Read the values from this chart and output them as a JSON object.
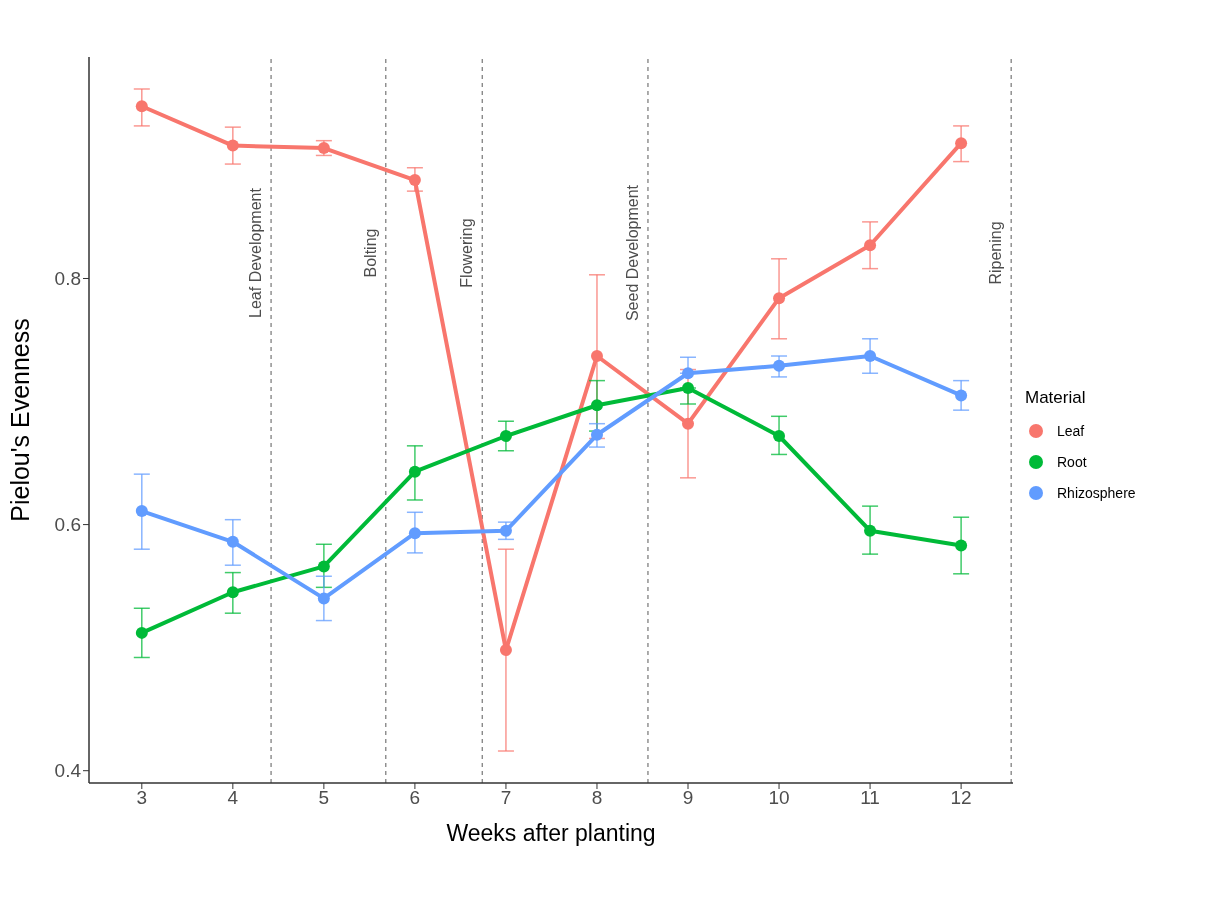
{
  "chart_data": {
    "type": "line",
    "xlabel": "Weeks after planting",
    "ylabel": "Pielou's Evenness",
    "legend_title": "Material",
    "x": [
      3,
      4,
      5,
      6,
      7,
      8,
      9,
      10,
      11,
      12
    ],
    "xlim": [
      2.42,
      12.57
    ],
    "xticks": [
      3,
      4,
      5,
      6,
      7,
      8,
      9,
      10,
      11,
      12
    ],
    "ylim": [
      0.39,
      0.98
    ],
    "yticks": [
      0.4,
      0.6,
      0.8
    ],
    "grid": false,
    "legend": "right",
    "marker": "circle",
    "line_style": "solid",
    "series": [
      {
        "name": "Leaf",
        "color": "#f8766d",
        "values": [
          0.94,
          0.908,
          0.906,
          0.88,
          0.498,
          0.737,
          0.682,
          0.784,
          0.827,
          0.91
        ],
        "errors": [
          [
            0.924,
            0.954
          ],
          [
            0.893,
            0.923
          ],
          [
            0.9,
            0.912
          ],
          [
            0.871,
            0.89
          ],
          [
            0.416,
            0.58
          ],
          [
            0.67,
            0.803
          ],
          [
            0.638,
            0.726
          ],
          [
            0.751,
            0.816
          ],
          [
            0.808,
            0.846
          ],
          [
            0.895,
            0.924
          ]
        ]
      },
      {
        "name": "Root",
        "color": "#00ba38",
        "values": [
          0.512,
          0.545,
          0.566,
          0.643,
          0.672,
          0.697,
          0.711,
          0.672,
          0.595,
          0.583
        ],
        "errors": [
          [
            0.492,
            0.532
          ],
          [
            0.528,
            0.561
          ],
          [
            0.549,
            0.584
          ],
          [
            0.62,
            0.664
          ],
          [
            0.66,
            0.684
          ],
          [
            0.676,
            0.717
          ],
          [
            0.698,
            0.711
          ],
          [
            0.657,
            0.688
          ],
          [
            0.576,
            0.615
          ],
          [
            0.56,
            0.606
          ]
        ]
      },
      {
        "name": "Rhizosphere",
        "color": "#619cff",
        "values": [
          0.611,
          0.586,
          0.54,
          0.593,
          0.595,
          0.673,
          0.723,
          0.729,
          0.737,
          0.705
        ],
        "errors": [
          [
            0.58,
            0.641
          ],
          [
            0.567,
            0.604
          ],
          [
            0.522,
            0.558
          ],
          [
            0.577,
            0.61
          ],
          [
            0.588,
            0.602
          ],
          [
            0.663,
            0.682
          ],
          [
            0.723,
            0.736
          ],
          [
            0.72,
            0.737
          ],
          [
            0.723,
            0.751
          ],
          [
            0.693,
            0.717
          ]
        ]
      }
    ],
    "ref_lines": [
      {
        "axis": "x",
        "value": 4.42,
        "label": "Leaf Development",
        "color": "#808080",
        "line_style": "dashed"
      },
      {
        "axis": "x",
        "value": 5.68,
        "label": "Bolting",
        "color": "#808080",
        "line_style": "dashed"
      },
      {
        "axis": "x",
        "value": 6.74,
        "label": "Flowering",
        "color": "#808080",
        "line_style": "dashed"
      },
      {
        "axis": "x",
        "value": 8.56,
        "label": "Seed Development",
        "color": "#808080",
        "line_style": "dashed"
      },
      {
        "axis": "x",
        "value": 12.55,
        "label": "Ripening",
        "color": "#808080",
        "line_style": "dashed"
      }
    ]
  }
}
